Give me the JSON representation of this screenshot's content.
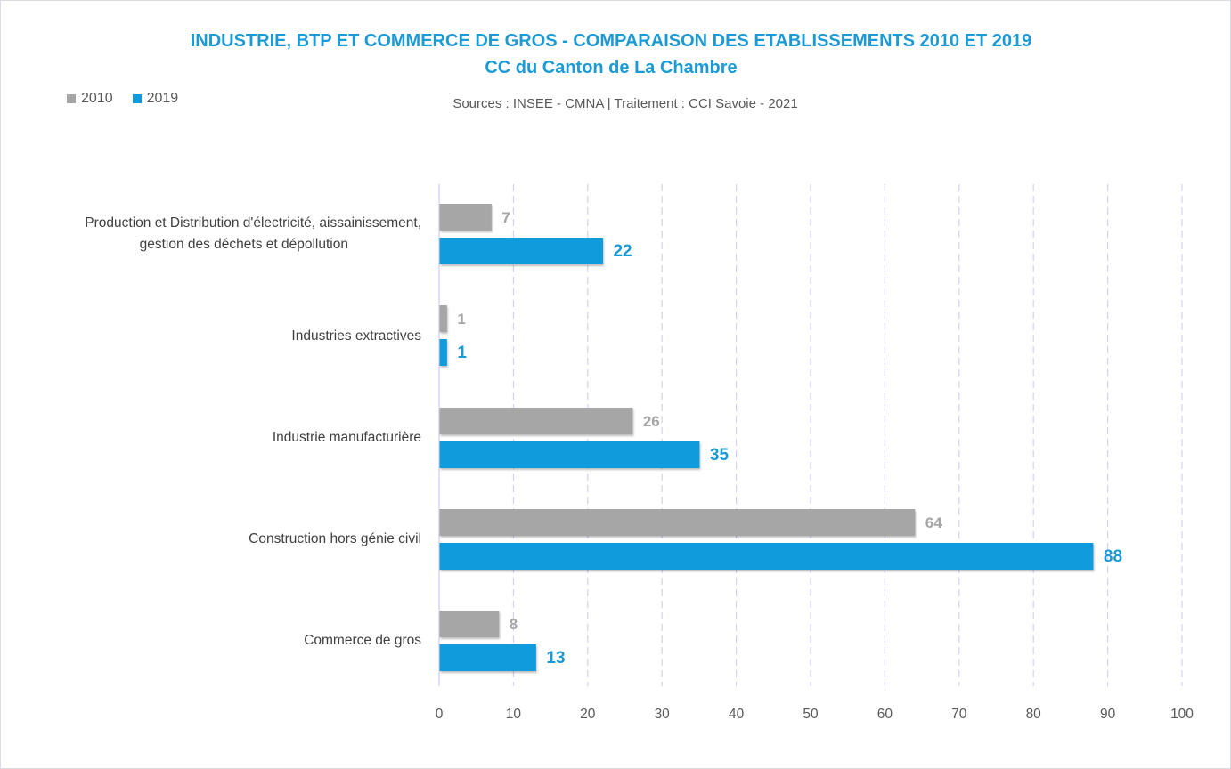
{
  "chart_data": {
    "type": "bar",
    "orientation": "horizontal",
    "title": "INDUSTRIE, BTP ET COMMERCE DE GROS - COMPARAISON DES ETABLISSEMENTS 2010 ET 2019",
    "subtitle": "CC du Canton de La Chambre",
    "source": "Sources : INSEE - CMNA  |  Traitement : CCI Savoie - 2021",
    "categories": [
      [
        "Production et Distribution d'électricité, aissainissement,",
        "gestion des déchets et dépollution"
      ],
      [
        "Industries extractives"
      ],
      [
        "Industrie manufacturière"
      ],
      [
        "Construction hors génie civil"
      ],
      [
        "Commerce de gros"
      ]
    ],
    "series": [
      {
        "name": "2010",
        "color": "#a6a6a6",
        "values": [
          7,
          1,
          26,
          64,
          8
        ]
      },
      {
        "name": "2019",
        "color": "#0f9bdc",
        "values": [
          22,
          1,
          35,
          88,
          13
        ]
      }
    ],
    "xlim": [
      0,
      100
    ],
    "xticks": [
      0,
      10,
      20,
      30,
      40,
      50,
      60,
      70,
      80,
      90,
      100
    ],
    "grid": "vertical dashed",
    "legend_position": "top-left"
  }
}
